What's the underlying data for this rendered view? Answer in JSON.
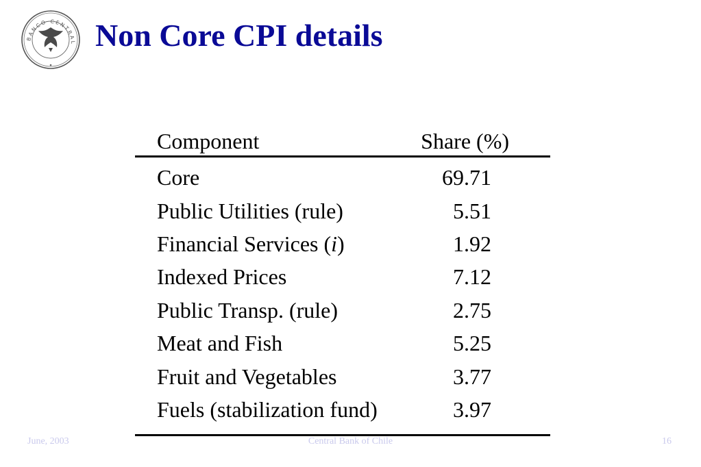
{
  "header": {
    "title": "Non Core CPI details",
    "logo_text": "BANCO CENTRAL"
  },
  "table": {
    "headers": [
      "Component",
      "Share (%)"
    ],
    "rows": [
      {
        "component": "Core",
        "share": "69.71"
      },
      {
        "component": "Public Utilities (rule)",
        "share": "5.51"
      },
      {
        "component_prefix": "Financial Services (",
        "component_italic": "i",
        "component_suffix": ")",
        "share": "1.92"
      },
      {
        "component": "Indexed Prices",
        "share": "7.12"
      },
      {
        "component": "Public Transp. (rule)",
        "share": "2.75"
      },
      {
        "component": "Meat and Fish",
        "share": "5.25"
      },
      {
        "component": "Fruit and Vegetables",
        "share": "3.77"
      },
      {
        "component": "Fuels (stabilization fund)",
        "share": "3.97"
      }
    ]
  },
  "footer": {
    "date": "June, 2003",
    "organization": "Central Bank of Chile",
    "page_number": "16"
  },
  "colors": {
    "title": "#0a0a96",
    "footer_text": "#c9c9ec",
    "text": "#000000",
    "logo_stroke": "#555555"
  }
}
